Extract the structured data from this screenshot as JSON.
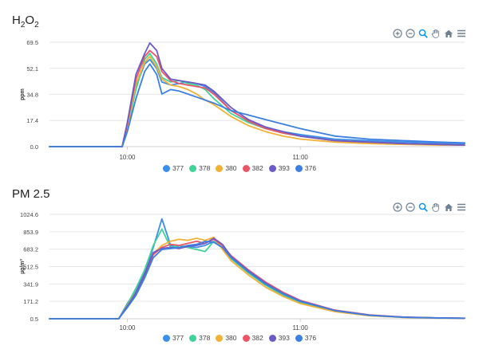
{
  "panels": [
    {
      "title_main": "H",
      "title_sub1": "2",
      "title_mid": "O",
      "title_sub2": "2",
      "ylabel": "ppm"
    },
    {
      "title_main": "PM 2.5",
      "ylabel": "µg/m³"
    }
  ],
  "toolbar": {
    "icons": [
      "zoom-in-icon",
      "zoom-out-icon",
      "zoom-select-icon",
      "pan-hand-icon",
      "reset-home-icon",
      "menu-icon"
    ]
  },
  "colors": {
    "377": "#3b8fe8",
    "378": "#3fd39a",
    "380": "#f2b134",
    "382": "#ec5566",
    "393": "#6b5bc9",
    "376": "#3c7fe3"
  },
  "chart_data": [
    {
      "type": "line",
      "title": "H2O2",
      "ylabel": "ppm",
      "ylim": [
        0,
        69.5
      ],
      "yticks": [
        "69.5",
        "52.1",
        "34.8",
        "17.4",
        "0.0"
      ],
      "ytick_values": [
        69.5,
        52.1,
        34.8,
        17.4,
        0.0
      ],
      "xlim": [
        9.55,
        11.95
      ],
      "xticks": [
        "10:00",
        "11:00"
      ],
      "xtick_values": [
        10.0,
        11.0
      ],
      "grid": true,
      "legend_position": "bottom-center",
      "series": [
        {
          "name": "377",
          "x": [
            9.55,
            9.97,
            10.0,
            10.05,
            10.1,
            10.13,
            10.17,
            10.2,
            10.25,
            10.3,
            10.35,
            10.4,
            10.45,
            10.5,
            10.6,
            10.7,
            10.8,
            10.9,
            11.0,
            11.2,
            11.4,
            11.6,
            11.8,
            11.95
          ],
          "y": [
            0,
            0,
            14,
            40,
            55,
            58,
            52,
            43,
            41,
            42,
            43,
            42,
            40,
            36,
            24,
            17,
            13,
            10,
            8,
            5,
            4,
            3,
            2.5,
            2
          ]
        },
        {
          "name": "378",
          "x": [
            9.55,
            9.97,
            10.0,
            10.05,
            10.1,
            10.13,
            10.17,
            10.2,
            10.25,
            10.3,
            10.35,
            10.4,
            10.45,
            10.5,
            10.6,
            10.7,
            10.8,
            10.9,
            11.0,
            11.2,
            11.4,
            11.6,
            11.8,
            11.95
          ],
          "y": [
            0,
            0,
            12,
            38,
            58,
            62,
            55,
            46,
            43,
            44,
            42,
            41,
            38,
            32,
            22,
            16,
            12,
            9,
            7,
            4,
            3,
            2,
            1.5,
            1
          ]
        },
        {
          "name": "380",
          "x": [
            9.55,
            9.97,
            10.0,
            10.05,
            10.1,
            10.13,
            10.17,
            10.2,
            10.25,
            10.3,
            10.35,
            10.4,
            10.45,
            10.5,
            10.6,
            10.7,
            10.8,
            10.9,
            11.0,
            11.2,
            11.4,
            11.6,
            11.8,
            11.95
          ],
          "y": [
            0,
            0,
            13,
            42,
            56,
            60,
            53,
            45,
            41,
            40,
            38,
            35,
            31,
            28,
            20,
            14,
            10,
            7,
            5,
            3,
            2,
            1.5,
            1,
            1
          ]
        },
        {
          "name": "382",
          "x": [
            9.55,
            9.97,
            10.0,
            10.05,
            10.1,
            10.13,
            10.17,
            10.2,
            10.25,
            10.3,
            10.35,
            10.4,
            10.45,
            10.5,
            10.6,
            10.7,
            10.8,
            10.9,
            11.0,
            11.2,
            11.4,
            11.6,
            11.8,
            11.95
          ],
          "y": [
            0,
            0,
            15,
            45,
            60,
            64,
            60,
            50,
            44,
            42,
            41,
            40,
            39,
            35,
            24,
            17,
            12,
            9,
            7,
            4,
            3,
            2,
            1.5,
            1
          ]
        },
        {
          "name": "393",
          "x": [
            9.55,
            9.97,
            10.0,
            10.05,
            10.1,
            10.13,
            10.17,
            10.2,
            10.25,
            10.3,
            10.35,
            10.4,
            10.45,
            10.5,
            10.6,
            10.7,
            10.8,
            10.9,
            11.0,
            11.2,
            11.4,
            11.6,
            11.8,
            11.95
          ],
          "y": [
            0,
            0,
            16,
            48,
            62,
            69,
            64,
            52,
            45,
            44,
            43,
            42,
            41,
            37,
            26,
            18,
            13,
            10,
            7,
            4,
            3,
            2,
            1.5,
            1
          ]
        },
        {
          "name": "376",
          "x": [
            9.55,
            9.97,
            10.0,
            10.05,
            10.1,
            10.13,
            10.17,
            10.2,
            10.25,
            10.3,
            10.35,
            10.4,
            10.45,
            10.5,
            10.6,
            10.7,
            10.8,
            10.9,
            11.0,
            11.2,
            11.4,
            11.6,
            11.8,
            11.95
          ],
          "y": [
            0,
            0,
            10,
            32,
            50,
            55,
            48,
            35,
            38,
            37,
            35,
            33,
            31,
            29,
            24,
            21,
            18,
            15,
            12,
            7,
            5,
            4,
            3,
            2.5
          ]
        }
      ]
    },
    {
      "type": "line",
      "title": "PM 2.5",
      "ylabel": "µg/m³",
      "ylim": [
        0.5,
        1024.6
      ],
      "yticks": [
        "1024.6",
        "853.9",
        "683.2",
        "512.5",
        "341.9",
        "171.2",
        "0.5"
      ],
      "ytick_values": [
        1024.6,
        853.9,
        683.2,
        512.5,
        341.9,
        171.2,
        0.5
      ],
      "xlim": [
        9.55,
        11.95
      ],
      "xticks": [
        "10:00",
        "11:00"
      ],
      "xtick_values": [
        10.0,
        11.0
      ],
      "grid": true,
      "legend_position": "bottom-center",
      "series": [
        {
          "name": "377",
          "x": [
            9.55,
            9.95,
            10.0,
            10.05,
            10.1,
            10.15,
            10.2,
            10.25,
            10.3,
            10.35,
            10.4,
            10.45,
            10.5,
            10.55,
            10.6,
            10.7,
            10.8,
            10.9,
            11.0,
            11.2,
            11.4,
            11.6,
            11.8,
            11.95
          ],
          "y": [
            0.5,
            0.5,
            150,
            280,
            450,
            700,
            980,
            720,
            700,
            710,
            700,
            720,
            760,
            700,
            600,
            460,
            340,
            240,
            170,
            80,
            35,
            15,
            8,
            5
          ]
        },
        {
          "name": "378",
          "x": [
            9.55,
            9.95,
            10.0,
            10.05,
            10.1,
            10.15,
            10.2,
            10.25,
            10.3,
            10.35,
            10.4,
            10.45,
            10.5,
            10.55,
            10.6,
            10.7,
            10.8,
            10.9,
            11.0,
            11.2,
            11.4,
            11.6,
            11.8,
            11.95
          ],
          "y": [
            0.5,
            0.5,
            140,
            300,
            480,
            720,
            880,
            700,
            720,
            700,
            680,
            660,
            760,
            690,
            590,
            450,
            330,
            230,
            160,
            75,
            32,
            14,
            7,
            5
          ]
        },
        {
          "name": "380",
          "x": [
            9.55,
            9.95,
            10.0,
            10.05,
            10.1,
            10.15,
            10.2,
            10.25,
            10.3,
            10.35,
            10.4,
            10.45,
            10.5,
            10.55,
            10.6,
            10.7,
            10.8,
            10.9,
            11.0,
            11.2,
            11.4,
            11.6,
            11.8,
            11.95
          ],
          "y": [
            0.5,
            0.5,
            130,
            260,
            430,
            640,
            720,
            760,
            780,
            770,
            790,
            770,
            800,
            680,
            570,
            430,
            310,
            220,
            150,
            70,
            30,
            13,
            7,
            5
          ]
        },
        {
          "name": "382",
          "x": [
            9.55,
            9.95,
            10.0,
            10.05,
            10.1,
            10.15,
            10.2,
            10.25,
            10.3,
            10.35,
            10.4,
            10.45,
            10.5,
            10.55,
            10.6,
            10.7,
            10.8,
            10.9,
            11.0,
            11.2,
            11.4,
            11.6,
            11.8,
            11.95
          ],
          "y": [
            0.5,
            0.5,
            120,
            250,
            420,
            630,
            700,
            730,
            720,
            740,
            760,
            740,
            780,
            720,
            620,
            480,
            360,
            260,
            180,
            85,
            38,
            17,
            9,
            6
          ]
        },
        {
          "name": "393",
          "x": [
            9.55,
            9.95,
            10.0,
            10.05,
            10.1,
            10.15,
            10.2,
            10.25,
            10.3,
            10.35,
            10.4,
            10.45,
            10.5,
            10.55,
            10.6,
            10.7,
            10.8,
            10.9,
            11.0,
            11.2,
            11.4,
            11.6,
            11.8,
            11.95
          ],
          "y": [
            0.5,
            0.5,
            125,
            255,
            440,
            650,
            690,
            700,
            690,
            710,
            720,
            740,
            790,
            730,
            610,
            470,
            350,
            250,
            175,
            82,
            36,
            16,
            8,
            5
          ]
        },
        {
          "name": "376",
          "x": [
            9.55,
            9.95,
            10.0,
            10.05,
            10.1,
            10.15,
            10.2,
            10.25,
            10.3,
            10.35,
            10.4,
            10.45,
            10.5,
            10.55,
            10.6,
            10.7,
            10.8,
            10.9,
            11.0,
            11.2,
            11.4,
            11.6,
            11.8,
            11.95
          ],
          "y": [
            0.5,
            0.5,
            110,
            230,
            400,
            600,
            680,
            690,
            700,
            720,
            730,
            760,
            750,
            700,
            600,
            460,
            340,
            245,
            170,
            80,
            34,
            15,
            8,
            5
          ]
        }
      ]
    }
  ]
}
